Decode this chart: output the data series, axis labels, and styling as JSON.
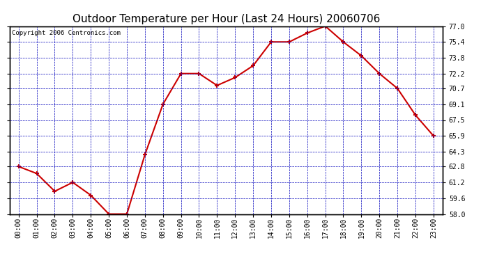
{
  "title": "Outdoor Temperature per Hour (Last 24 Hours) 20060706",
  "copyright_text": "Copyright 2006 Centronics.com",
  "hours": [
    "00:00",
    "01:00",
    "02:00",
    "03:00",
    "04:00",
    "05:00",
    "06:00",
    "07:00",
    "08:00",
    "09:00",
    "10:00",
    "11:00",
    "12:00",
    "13:00",
    "14:00",
    "15:00",
    "16:00",
    "17:00",
    "18:00",
    "19:00",
    "20:00",
    "21:00",
    "22:00",
    "23:00"
  ],
  "temperatures": [
    62.8,
    62.1,
    60.3,
    61.2,
    59.9,
    58.0,
    58.0,
    64.0,
    69.1,
    72.2,
    72.2,
    71.0,
    71.8,
    73.0,
    75.4,
    75.4,
    76.3,
    77.0,
    75.4,
    74.0,
    72.2,
    70.7,
    68.0,
    65.9
  ],
  "ylim": [
    58.0,
    77.0
  ],
  "yticks": [
    58.0,
    59.6,
    61.2,
    62.8,
    64.3,
    65.9,
    67.5,
    69.1,
    70.7,
    72.2,
    73.8,
    75.4,
    77.0
  ],
  "ytick_labels": [
    "58.0",
    "59.6",
    "61.2",
    "62.8",
    "64.3",
    "65.9",
    "67.5",
    "69.1",
    "70.7",
    "72.2",
    "73.8",
    "75.4",
    "77.0"
  ],
  "line_color": "#cc0000",
  "marker_color": "#cc0000",
  "bg_color": "#ffffff",
  "plot_bg_color": "#ffffff",
  "grid_color": "#0000bb",
  "title_fontsize": 11,
  "axis_label_fontsize": 7,
  "copyright_fontsize": 6.5
}
